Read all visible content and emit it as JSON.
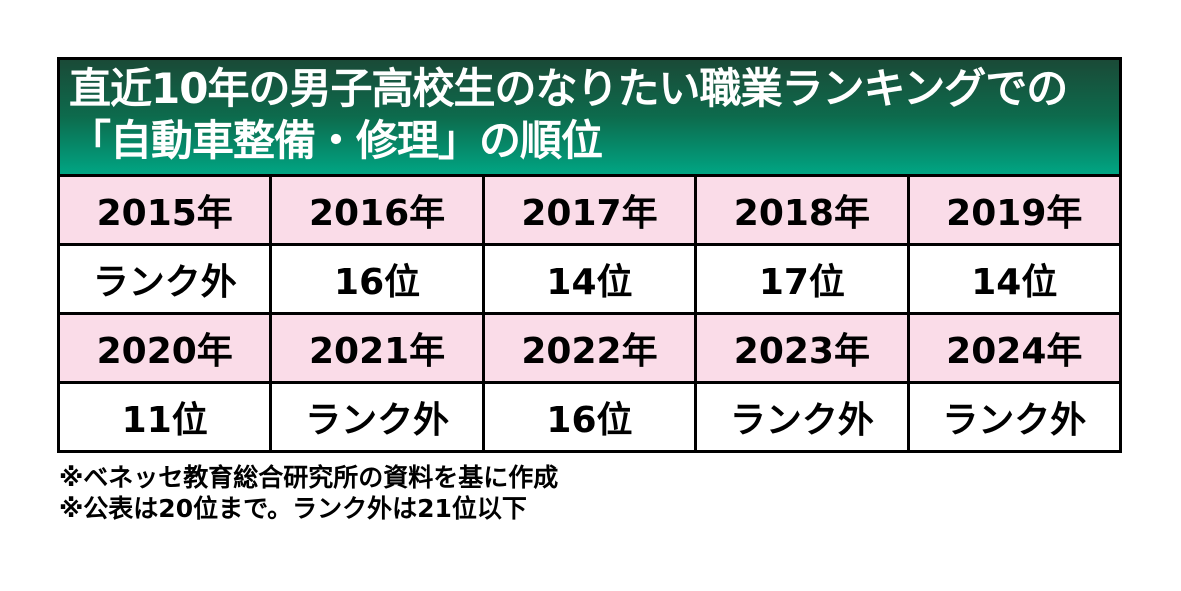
{
  "title": {
    "line1": "直近10年の男子高校生のなりたい職業ランキングでの",
    "line2": "「自動車整備・修理」の順位"
  },
  "table": {
    "rows": [
      [
        "2015年",
        "2016年",
        "2017年",
        "2018年",
        "2019年"
      ],
      [
        "ランク外",
        "16位",
        "14位",
        "17位",
        "14位"
      ],
      [
        "2020年",
        "2021年",
        "2022年",
        "2023年",
        "2024年"
      ],
      [
        "11位",
        "ランク外",
        "16位",
        "ランク外",
        "ランク外"
      ]
    ]
  },
  "notes": [
    "※ベネッセ教育総合研究所の資料を基に作成",
    "※公表は20位まで。ランク外は21位以下"
  ],
  "colors": {
    "banner_gradient_top": "#1a4a37",
    "banner_gradient_mid": "#0d6b4d",
    "banner_gradient_bottom": "#00a583",
    "banner_text": "#ffffff",
    "row_pink": "#fadce8",
    "row_white": "#ffffff",
    "border": "#000000",
    "body_text": "#000000"
  },
  "chart_data": {
    "type": "table",
    "title": "直近10年の男子高校生のなりたい職業ランキングでの「自動車整備・修理」の順位",
    "categories": [
      "2015年",
      "2016年",
      "2017年",
      "2018年",
      "2019年",
      "2020年",
      "2021年",
      "2022年",
      "2023年",
      "2024年"
    ],
    "values": [
      "ランク外",
      "16位",
      "14位",
      "17位",
      "14位",
      "11位",
      "ランク外",
      "16位",
      "ランク外",
      "ランク外"
    ],
    "notes": [
      "※ベネッセ教育総合研究所の資料を基に作成",
      "※公表は20位まで。ランク外は21位以下"
    ],
    "layout": "2行×5列（年の行はピンク、順位の行は白）"
  }
}
